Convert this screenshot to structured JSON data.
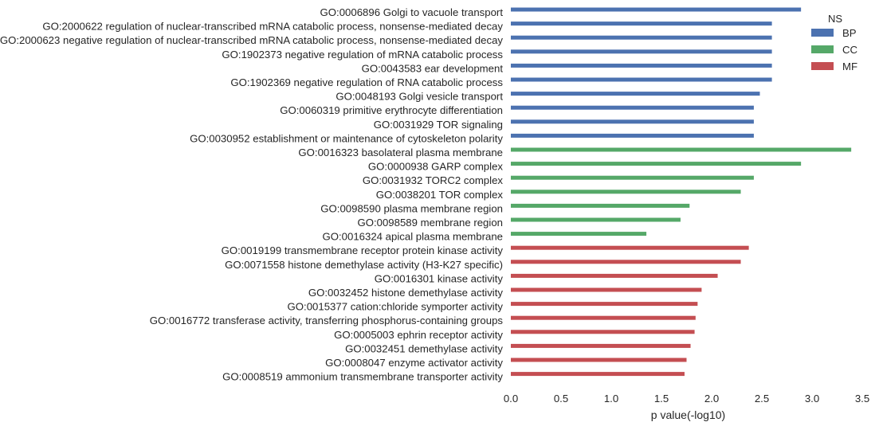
{
  "chart_data": {
    "type": "bar",
    "orientation": "horizontal",
    "xlabel": "p value(-log10)",
    "ylabel": "",
    "xlim": [
      0.0,
      3.5
    ],
    "xticks": [
      "0.0",
      "0.5",
      "1.0",
      "1.5",
      "2.0",
      "2.5",
      "3.0",
      "3.5"
    ],
    "grid": false,
    "legend": {
      "title": "NS",
      "placement": "top-right",
      "entries": [
        {
          "name": "BP",
          "color": "#4c72b0"
        },
        {
          "name": "CC",
          "color": "#55a868"
        },
        {
          "name": "MF",
          "color": "#c44e52"
        }
      ]
    },
    "categories": [
      "GO:0006896 Golgi to vacuole transport",
      "GO:2000622 regulation of nuclear-transcribed mRNA catabolic process, nonsense-mediated decay",
      "GO:2000623 negative regulation of nuclear-transcribed mRNA catabolic process, nonsense-mediated decay",
      "GO:1902373 negative regulation of mRNA catabolic process",
      "GO:0043583 ear development",
      "GO:1902369 negative regulation of RNA catabolic process",
      "GO:0048193 Golgi vesicle transport",
      "GO:0060319 primitive erythrocyte differentiation",
      "GO:0031929 TOR signaling",
      "GO:0030952 establishment or maintenance of cytoskeleton polarity",
      "GO:0016323 basolateral plasma membrane",
      "GO:0000938 GARP complex",
      "GO:0031932 TORC2 complex",
      "GO:0038201 TOR complex",
      "GO:0098590 plasma membrane region",
      "GO:0098589 membrane region",
      "GO:0016324 apical plasma membrane",
      "GO:0019199 transmembrane receptor protein kinase activity",
      "GO:0071558 histone demethylase activity (H3-K27 specific)",
      "GO:0016301 kinase activity",
      "GO:0032452 histone demethylase activity",
      "GO:0015377 cation:chloride symporter activity",
      "GO:0016772 transferase activity, transferring phosphorus-containing groups",
      "GO:0005003 ephrin receptor activity",
      "GO:0032451 demethylase activity",
      "GO:0008047 enzyme activator activity",
      "GO:0008519 ammonium transmembrane transporter activity"
    ],
    "series": [
      {
        "name": "BP",
        "values": [
          2.89,
          2.6,
          2.6,
          2.6,
          2.6,
          2.6,
          2.48,
          2.42,
          2.42,
          2.42,
          null,
          null,
          null,
          null,
          null,
          null,
          null,
          null,
          null,
          null,
          null,
          null,
          null,
          null,
          null,
          null,
          null
        ]
      },
      {
        "name": "CC",
        "values": [
          null,
          null,
          null,
          null,
          null,
          null,
          null,
          null,
          null,
          null,
          3.39,
          2.89,
          2.42,
          2.29,
          1.78,
          1.69,
          1.35,
          null,
          null,
          null,
          null,
          null,
          null,
          null,
          null,
          null,
          null
        ]
      },
      {
        "name": "MF",
        "values": [
          null,
          null,
          null,
          null,
          null,
          null,
          null,
          null,
          null,
          null,
          null,
          null,
          null,
          null,
          null,
          null,
          null,
          2.37,
          2.29,
          2.06,
          1.9,
          1.86,
          1.84,
          1.83,
          1.79,
          1.75,
          1.73
        ]
      }
    ]
  }
}
